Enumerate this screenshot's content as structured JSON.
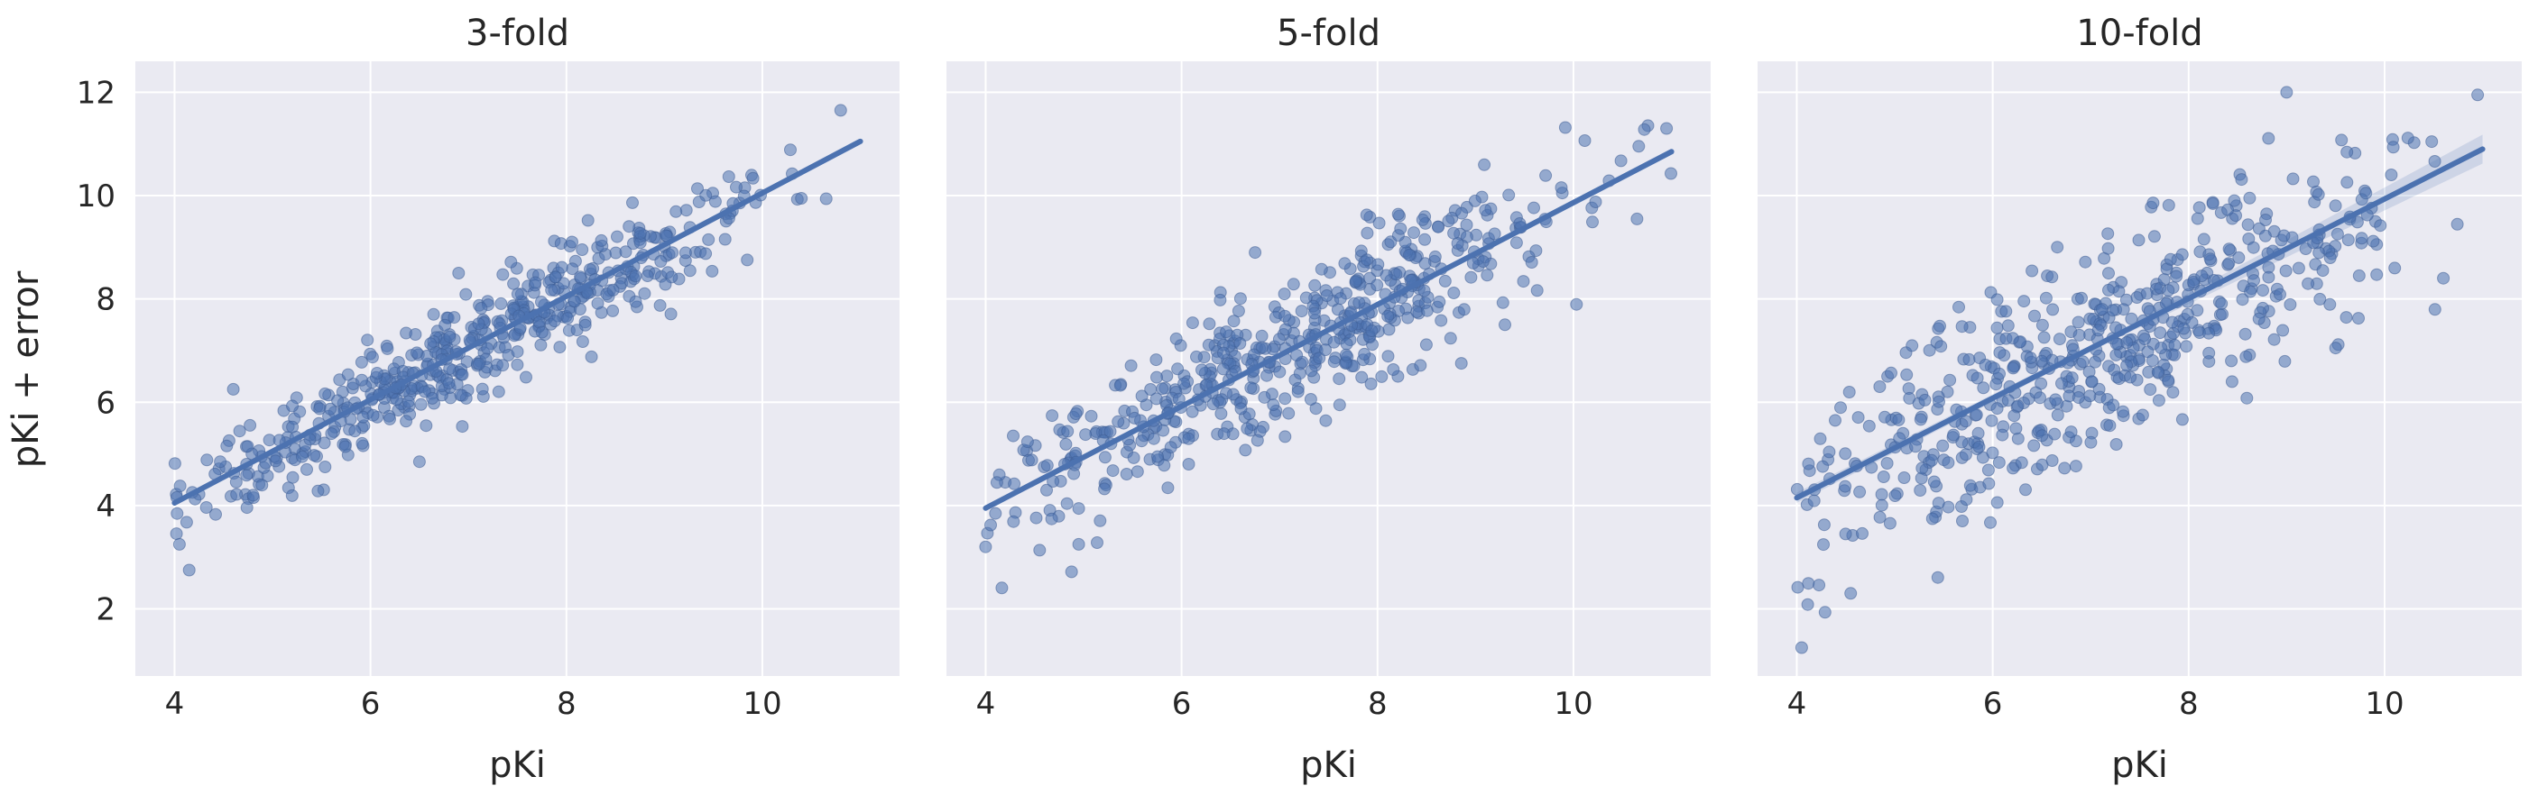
{
  "figure": {
    "ylabel": "pKi + error",
    "xlabel": "pKi"
  },
  "chart_data": [
    {
      "type": "scatter",
      "title": "3-fold",
      "xlabel": "pKi",
      "ylabel": "pKi + error",
      "xlim": [
        3.6,
        11.4
      ],
      "ylim": [
        0.7,
        12.6
      ],
      "xticks": [
        4,
        6,
        8,
        10
      ],
      "yticks": [
        2,
        4,
        6,
        8,
        10,
        12
      ],
      "grid": true,
      "n_points": 520,
      "noise_sd": 0.5,
      "seed": 11,
      "regression": {
        "x": [
          4,
          11
        ],
        "y": [
          4.05,
          11.05
        ]
      },
      "ci_band": false,
      "outliers": [
        {
          "x": 4.15,
          "y": 2.75
        },
        {
          "x": 4.05,
          "y": 3.25
        },
        {
          "x": 4.6,
          "y": 6.25
        },
        {
          "x": 6.9,
          "y": 8.5
        },
        {
          "x": 10.8,
          "y": 11.65
        },
        {
          "x": 6.5,
          "y": 4.85
        }
      ],
      "color": "#4c72b0"
    },
    {
      "type": "scatter",
      "title": "5-fold",
      "xlabel": "pKi",
      "ylabel": "",
      "xlim": [
        3.6,
        11.4
      ],
      "ylim": [
        0.7,
        12.6
      ],
      "xticks": [
        4,
        6,
        8,
        10
      ],
      "yticks": [
        2,
        4,
        6,
        8,
        10,
        12
      ],
      "grid": true,
      "n_points": 520,
      "noise_sd": 0.72,
      "seed": 23,
      "regression": {
        "x": [
          4,
          11
        ],
        "y": [
          3.95,
          10.85
        ]
      },
      "ci_band": false,
      "outliers": [
        {
          "x": 4.0,
          "y": 3.2
        },
        {
          "x": 4.95,
          "y": 3.25
        },
        {
          "x": 6.75,
          "y": 8.9
        },
        {
          "x": 10.95,
          "y": 11.3
        },
        {
          "x": 9.3,
          "y": 7.5
        }
      ],
      "color": "#4c72b0"
    },
    {
      "type": "scatter",
      "title": "10-fold",
      "xlabel": "pKi",
      "ylabel": "",
      "xlim": [
        3.6,
        11.4
      ],
      "ylim": [
        0.7,
        12.6
      ],
      "xticks": [
        4,
        6,
        8,
        10
      ],
      "yticks": [
        2,
        4,
        6,
        8,
        10,
        12
      ],
      "grid": true,
      "n_points": 540,
      "noise_sd": 1.0,
      "seed": 37,
      "regression": {
        "x": [
          4,
          11
        ],
        "y": [
          4.15,
          10.9
        ]
      },
      "ci_band": true,
      "outliers": [
        {
          "x": 4.05,
          "y": 1.25
        },
        {
          "x": 4.55,
          "y": 2.3
        },
        {
          "x": 9.0,
          "y": 12.0
        },
        {
          "x": 10.95,
          "y": 11.95
        },
        {
          "x": 10.6,
          "y": 8.4
        },
        {
          "x": 9.5,
          "y": 7.05
        }
      ],
      "color": "#4c72b0"
    }
  ]
}
